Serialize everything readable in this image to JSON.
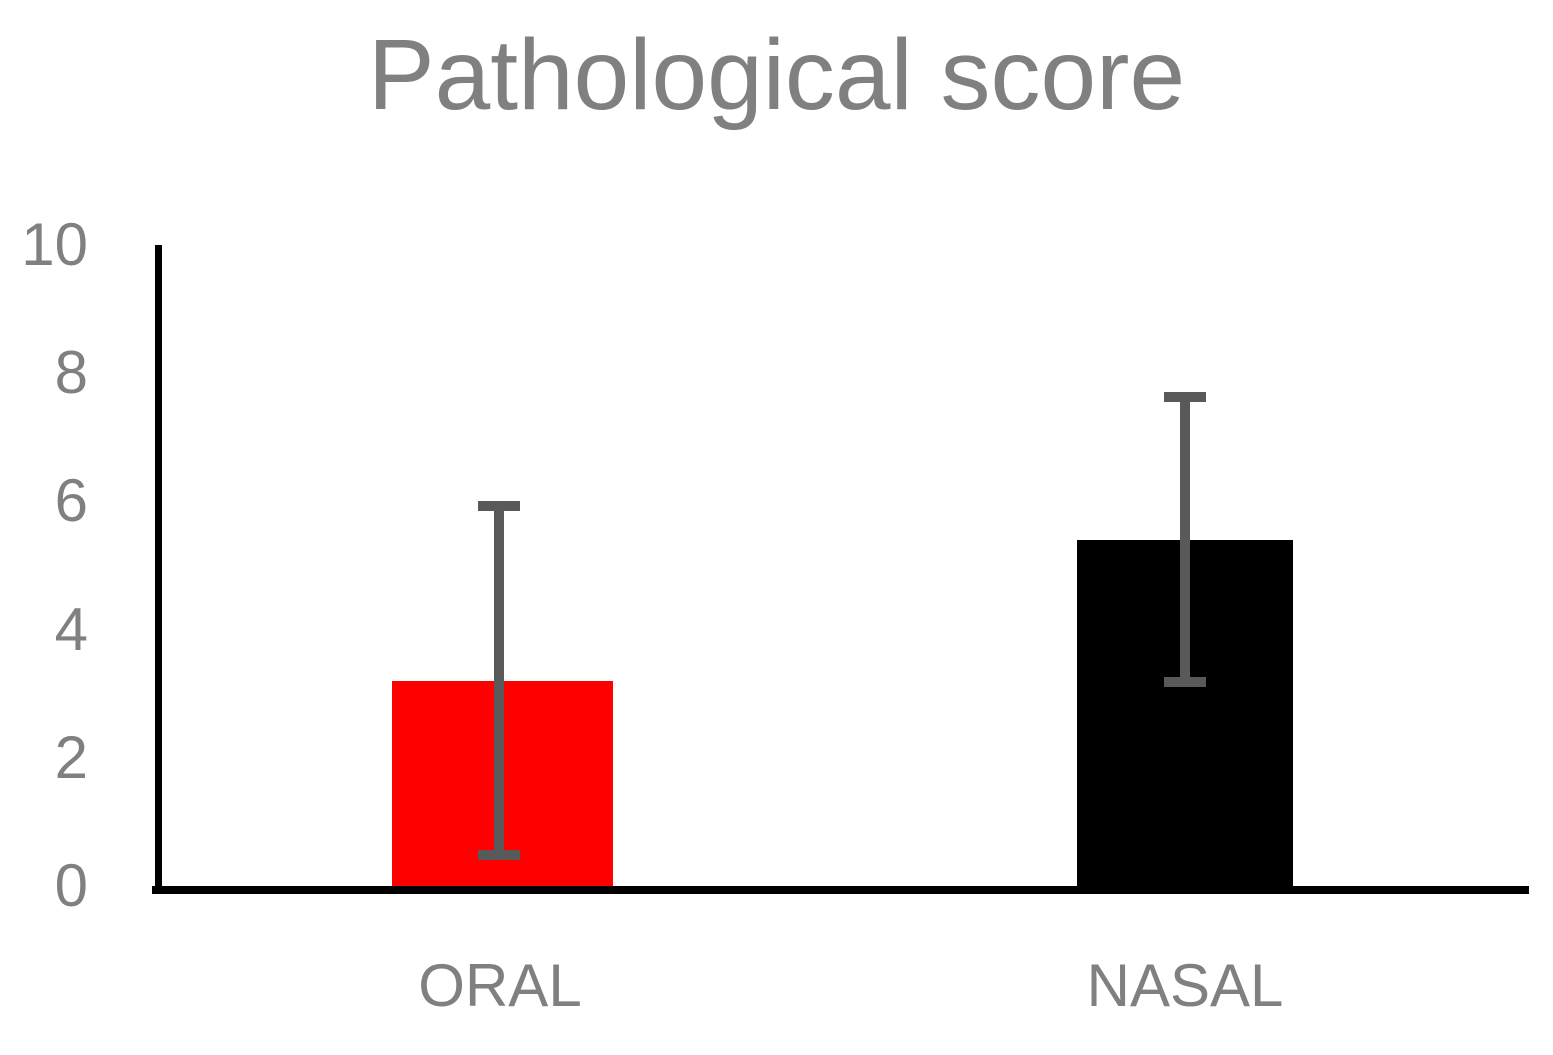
{
  "page": {
    "background": "#FFFFFF"
  },
  "chart_data": {
    "type": "bar",
    "title": "Pathological score",
    "categories": [
      "ORAL",
      "NASAL"
    ],
    "values": [
      3.2,
      5.4
    ],
    "error_bars": [
      {
        "low": 0.4,
        "high": 6.0
      },
      {
        "low": 3.1,
        "high": 7.7
      }
    ],
    "bar_colors": [
      "#FF0000",
      "#000000"
    ],
    "error_bar_color": "#595959",
    "axis_color": "#000000",
    "text_color": "#808080",
    "xlabel": "",
    "ylabel": "",
    "ylim": [
      0,
      10
    ],
    "yticks": [
      10,
      8,
      6,
      4,
      2,
      0
    ],
    "grid": false,
    "legend": false
  }
}
